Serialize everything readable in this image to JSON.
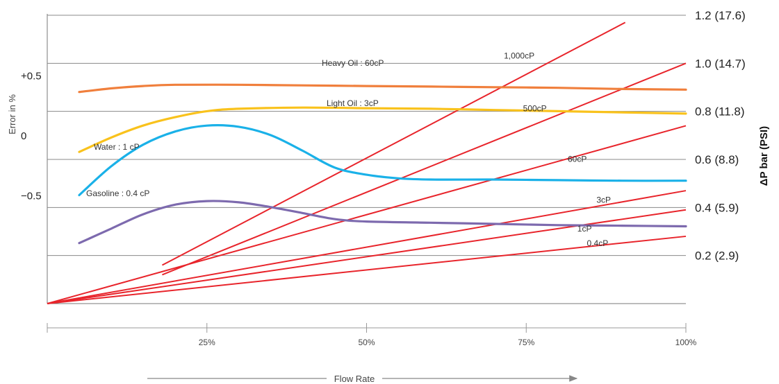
{
  "chart_data": {
    "type": "line",
    "xlabel": "Flow Rate",
    "ylabel_left": "Error in %",
    "ylabel_right": "ΔP bar (PSI)",
    "x_ticks": [
      "25%",
      "50%",
      "75%",
      "100%"
    ],
    "x_range": [
      0,
      100
    ],
    "left_axis": {
      "range": [
        -1.0,
        1.0
      ],
      "ticks": [
        {
          "value": 0.5,
          "label": "+0.5"
        },
        {
          "value": 0,
          "label": "0"
        },
        {
          "value": -0.5,
          "label": "−0.5"
        }
      ]
    },
    "right_axis": {
      "range": [
        0,
        1.2
      ],
      "ticks": [
        {
          "value": 1.2,
          "label": "1.2 (17.6)"
        },
        {
          "value": 1.0,
          "label": "1.0 (14.7)"
        },
        {
          "value": 0.8,
          "label": "0.8 (11.8)"
        },
        {
          "value": 0.6,
          "label": "0.6 (8.8)"
        },
        {
          "value": 0.4,
          "label": "0.4 (5.9)"
        },
        {
          "value": 0.2,
          "label": "0.2 (2.9)"
        }
      ]
    },
    "grid": true,
    "error_series": [
      {
        "name": "Heavy Oil : 60cP",
        "color": "#f07f3c",
        "x": [
          5,
          10,
          15,
          20,
          30,
          40,
          50,
          60,
          70,
          80,
          90,
          100
        ],
        "y": [
          0.36,
          0.39,
          0.41,
          0.42,
          0.42,
          0.415,
          0.41,
          0.405,
          0.4,
          0.395,
          0.385,
          0.38
        ]
      },
      {
        "name": "Light Oil : 3cP",
        "color": "#f9c21c",
        "x": [
          5,
          10,
          15,
          20,
          25,
          30,
          40,
          50,
          60,
          70,
          80,
          90,
          100
        ],
        "y": [
          -0.14,
          -0.02,
          0.08,
          0.15,
          0.2,
          0.22,
          0.23,
          0.225,
          0.22,
          0.21,
          0.2,
          0.19,
          0.18
        ]
      },
      {
        "name": "Water : 1 cP",
        "color": "#1ab1e8",
        "x": [
          5,
          10,
          15,
          20,
          25,
          30,
          35,
          40,
          45,
          50,
          55,
          60,
          70,
          80,
          90,
          100
        ],
        "y": [
          -0.5,
          -0.26,
          -0.08,
          0.03,
          0.08,
          0.07,
          0.0,
          -0.13,
          -0.27,
          -0.33,
          -0.36,
          -0.37,
          -0.37,
          -0.375,
          -0.38,
          -0.38
        ]
      },
      {
        "name": "Gasoline : 0.4 cP",
        "color": "#7d6aae",
        "x": [
          5,
          10,
          15,
          20,
          25,
          30,
          35,
          40,
          45,
          50,
          60,
          70,
          80,
          90,
          100
        ],
        "y": [
          -0.9,
          -0.78,
          -0.66,
          -0.58,
          -0.55,
          -0.56,
          -0.6,
          -0.65,
          -0.7,
          -0.72,
          -0.73,
          -0.74,
          -0.75,
          -0.755,
          -0.76
        ]
      }
    ],
    "dp_series": [
      {
        "name": "1,000cP",
        "color": "#e8242b",
        "x": [
          18,
          90.5
        ],
        "y": [
          0.16,
          1.17
        ],
        "label_at": [
          71.5,
          1.02
        ]
      },
      {
        "name": "500cP",
        "color": "#e8242b",
        "x": [
          18,
          100
        ],
        "y": [
          0.12,
          1.0
        ],
        "label_at": [
          74.5,
          0.8
        ]
      },
      {
        "name": "60cP",
        "color": "#e8242b",
        "x": [
          0,
          100
        ],
        "y": [
          0,
          0.74
        ],
        "label_at": [
          81.5,
          0.59
        ]
      },
      {
        "name": "3cP",
        "color": "#e8242b",
        "x": [
          0,
          100
        ],
        "y": [
          0,
          0.47
        ],
        "label_at": [
          86,
          0.42
        ]
      },
      {
        "name": "1cP",
        "color": "#e8242b",
        "x": [
          0,
          100
        ],
        "y": [
          0,
          0.39
        ],
        "label_at": [
          83,
          0.3
        ]
      },
      {
        "name": "0.4cP",
        "color": "#e8242b",
        "x": [
          0,
          100
        ],
        "y": [
          0,
          0.28
        ],
        "label_at": [
          84.5,
          0.24
        ]
      }
    ]
  }
}
